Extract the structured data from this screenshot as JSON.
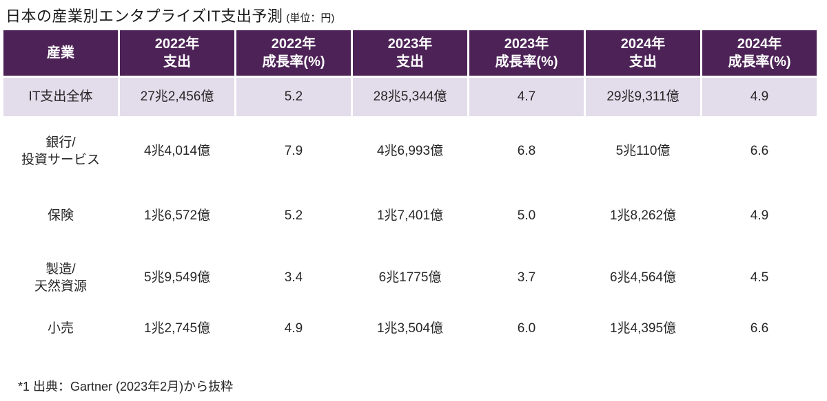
{
  "page": {
    "title": "日本の産業別エンタプライズIT支出予測",
    "title_unit": "(単位：円)",
    "footnote": "*1 出典：Gartner (2023年2月)から抜粋"
  },
  "colors": {
    "header_bg": "#4d2357",
    "header_text": "#ffffff",
    "highlight_row_bg": "#e3dceb",
    "body_text": "#262626",
    "grid_line": "#ffffff"
  },
  "chart_data": {
    "type": "table",
    "title": "日本の産業別エンタプライズIT支出予測",
    "unit_note": "(単位：円)",
    "legend_position": "none",
    "columns": [
      "産業",
      "2022年\n支出",
      "2022年\n成長率(%)",
      "2023年\n支出",
      "2023年\n成長率(%)",
      "2024年\n支出",
      "2024年\n成長率(%)"
    ],
    "rows": [
      {
        "highlight": true,
        "cells": [
          "IT支出全体",
          "27兆2,456億",
          "5.2",
          "28兆5,344億",
          "4.7",
          "29兆9,311億",
          "4.9"
        ]
      },
      {
        "highlight": false,
        "cells": [
          "銀行/\n投資サービス",
          "4兆4,014億",
          "7.9",
          "4兆6,993億",
          "6.8",
          "5兆110億",
          "6.6"
        ]
      },
      {
        "highlight": false,
        "cells": [
          "保険",
          "1兆6,572億",
          "5.2",
          "1兆7,401億",
          "5.0",
          "1兆8,262億",
          "4.9"
        ]
      },
      {
        "highlight": false,
        "cells": [
          "製造/\n天然資源",
          "5兆9,549億",
          "3.4",
          "6兆1775億",
          "3.7",
          "6兆4,564億",
          "4.5"
        ]
      },
      {
        "highlight": false,
        "cells": [
          "小売",
          "1兆2,745億",
          "4.9",
          "1兆3,504億",
          "6.0",
          "1兆4,395億",
          "6.6"
        ]
      }
    ],
    "footnote": "*1 出典：Gartner (2023年2月)から抜粋"
  }
}
